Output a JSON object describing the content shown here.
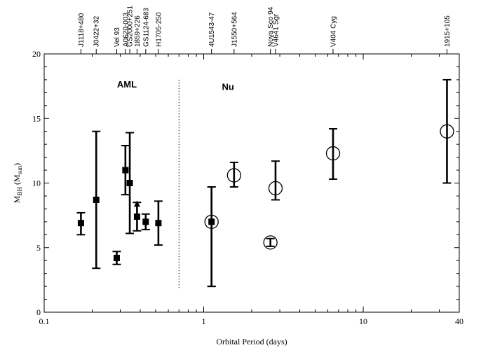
{
  "chart_data": {
    "type": "scatter",
    "title": "",
    "xlabel": "Orbital Period (days)",
    "ylabel_main": "M",
    "ylabel_sub": "BH",
    "ylabel_paren_open": " (M",
    "ylabel_paren_sub": "sun",
    "ylabel_paren_close": ")",
    "x_scale": "log",
    "xlim": [
      0.1,
      40
    ],
    "ylim": [
      0,
      20
    ],
    "x_ticks": [
      {
        "value": 0.1,
        "label": "0.1"
      },
      {
        "value": 1,
        "label": "1"
      },
      {
        "value": 10,
        "label": "10"
      },
      {
        "value": 40,
        "label": "40"
      }
    ],
    "y_ticks": [
      {
        "value": 0,
        "label": "0"
      },
      {
        "value": 5,
        "label": "5"
      },
      {
        "value": 10,
        "label": "10"
      },
      {
        "value": 15,
        "label": "15"
      },
      {
        "value": 20,
        "label": "20"
      }
    ],
    "divider_x": 0.7,
    "region_labels": [
      {
        "text": "AML",
        "x": 0.33,
        "y": 17.4
      },
      {
        "text": "Nu",
        "x": 1.42,
        "y": 17.2
      }
    ],
    "top_labels": [
      {
        "text": "J1118+480",
        "x": 0.17
      },
      {
        "text": "J0422+32",
        "x": 0.212
      },
      {
        "text": "Vel 93",
        "x": 0.285
      },
      {
        "text": "A0620-003",
        "x": 0.323
      },
      {
        "text": "GS2000+251",
        "x": 0.344
      },
      {
        "text": "1859+226",
        "x": 0.382
      },
      {
        "text": "GS1124-683",
        "x": 0.433
      },
      {
        "text": "H1705-250",
        "x": 0.52
      },
      {
        "text": "4U1543-47",
        "x": 1.12
      },
      {
        "text": "J1550+564",
        "x": 1.55
      },
      {
        "text": "Nova Sco 94",
        "x": 2.62
      },
      {
        "text": "V4641 Sgr",
        "x": 2.82
      },
      {
        "text": "V404 Cyg",
        "x": 6.47
      },
      {
        "text": "1915+105",
        "x": 33.5
      }
    ],
    "series": [
      {
        "marker": "square",
        "points": [
          {
            "x": 0.17,
            "y": 6.9,
            "yerr": [
              6.0,
              7.7
            ]
          },
          {
            "x": 0.212,
            "y": 8.7,
            "yerr": [
              3.4,
              14.0
            ]
          },
          {
            "x": 0.285,
            "y": 4.2,
            "yerr": [
              3.7,
              4.7
            ]
          },
          {
            "x": 0.323,
            "y": 11.0,
            "yerr": [
              9.1,
              12.9
            ]
          },
          {
            "x": 0.344,
            "y": 10.0,
            "yerr": [
              6.1,
              13.9
            ]
          },
          {
            "x": 0.382,
            "y": 7.4,
            "yerr": [
              6.3,
              8.5
            ]
          },
          {
            "x": 0.433,
            "y": 7.0,
            "yerr": [
              6.4,
              7.6
            ]
          },
          {
            "x": 0.52,
            "y": 6.9,
            "yerr": [
              5.2,
              8.6
            ]
          },
          {
            "x": 1.12,
            "y": 7.0,
            "yerr": [
              2.0,
              9.7
            ]
          }
        ]
      },
      {
        "marker": "circle",
        "points": [
          {
            "x": 1.12,
            "y": 7.0,
            "yerr": [
              2.0,
              9.7
            ]
          },
          {
            "x": 1.55,
            "y": 10.6,
            "yerr": [
              9.7,
              11.6
            ]
          },
          {
            "x": 2.62,
            "y": 5.4,
            "yerr": [
              5.1,
              5.7
            ]
          },
          {
            "x": 2.82,
            "y": 9.6,
            "yerr": [
              8.7,
              11.7
            ]
          },
          {
            "x": 6.47,
            "y": 12.3,
            "yerr": [
              10.3,
              14.2
            ]
          },
          {
            "x": 33.5,
            "y": 14.0,
            "yerr": [
              10.0,
              18.0
            ]
          }
        ]
      }
    ],
    "lower_limit_arrow": {
      "x": 0.382,
      "y_from": 7.4,
      "y_to": 8.3
    }
  }
}
